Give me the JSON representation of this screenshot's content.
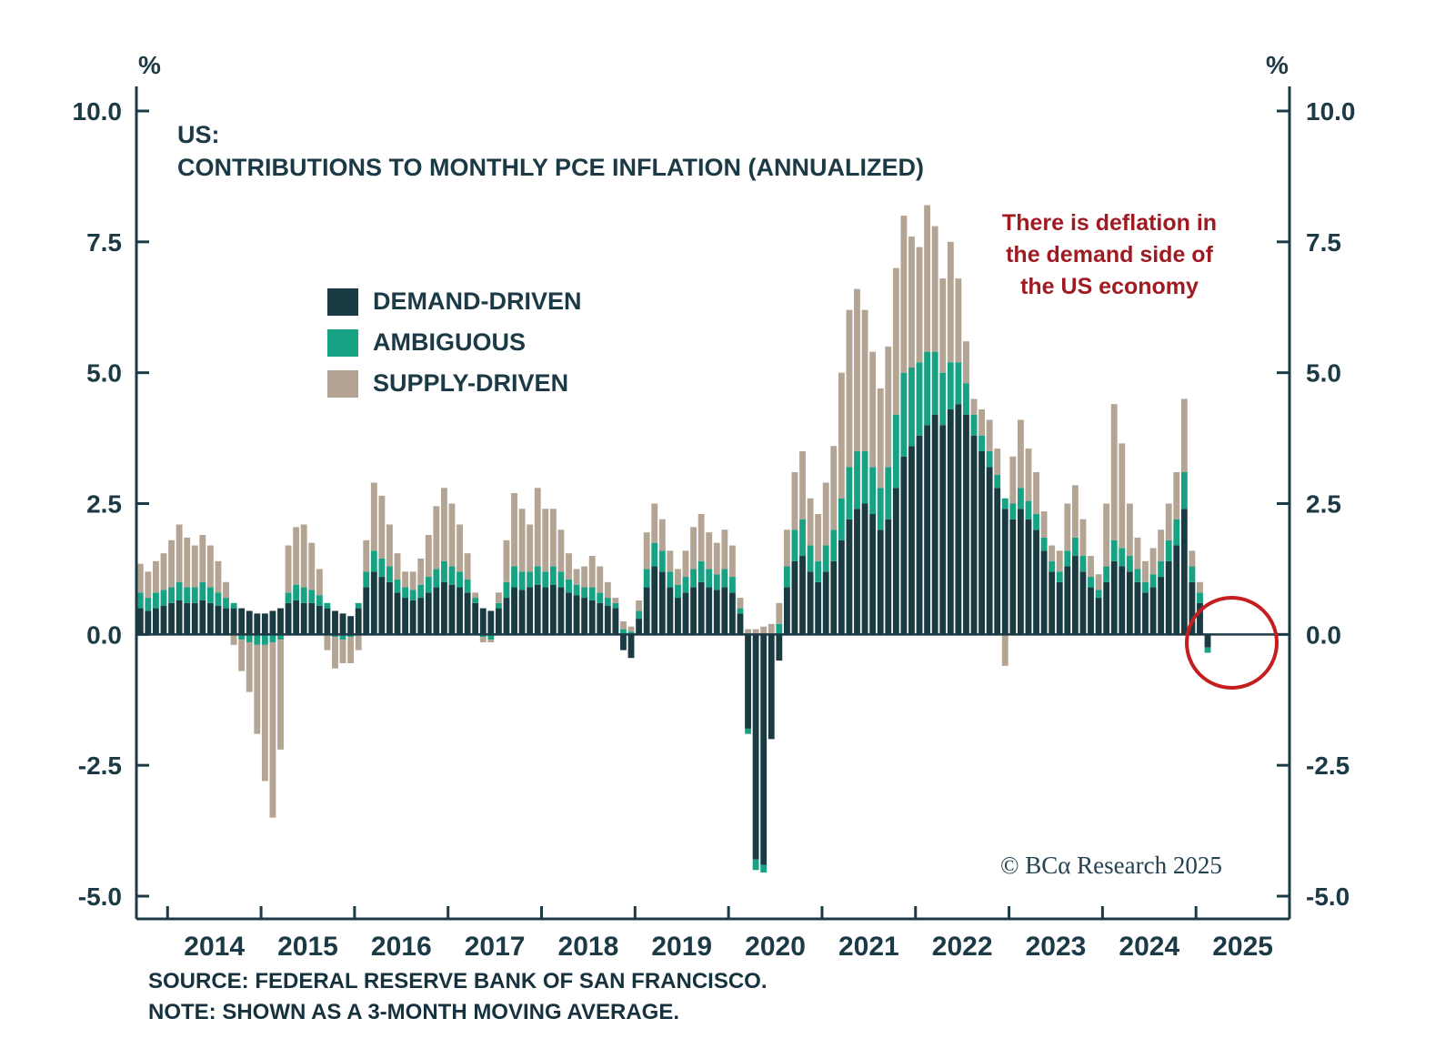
{
  "title": {
    "line1": "US:",
    "line2": "CONTRIBUTIONS TO MONTHLY PCE INFLATION (ANNUALIZED)"
  },
  "axes": {
    "unit_left": "%",
    "unit_right": "%",
    "y_ticks": [
      "10.0",
      "7.5",
      "5.0",
      "2.5",
      "0.0",
      "-2.5",
      "-5.0"
    ],
    "x_labels": [
      "2014",
      "2015",
      "2016",
      "2017",
      "2018",
      "2019",
      "2020",
      "2021",
      "2022",
      "2023",
      "2024",
      "2025"
    ]
  },
  "annotation": {
    "lines": [
      "There is deflation in",
      "the demand side of",
      "the US economy"
    ],
    "color": "#a01a22"
  },
  "copyright": "© BCα Research 2025",
  "source_note": {
    "line1": "SOURCE: FEDERAL RESERVE BANK OF SAN FRANCISCO.",
    "line2": "NOTE: SHOWN AS A 3-MONTH MOVING AVERAGE."
  },
  "chart_data": {
    "type": "bar",
    "stacked": true,
    "frequency": "monthly",
    "start": "2013-09",
    "end": "2025-02",
    "x_axis_span": [
      "2013-09",
      "2025-12"
    ],
    "ylim": [
      -5,
      10
    ],
    "grid": false,
    "legend_position": "upper-left-inside",
    "axis_color": "#1c3a46",
    "series": [
      {
        "name": "DEMAND-DRIVEN",
        "color": "#1b3b43"
      },
      {
        "name": "AMBIGUOUS",
        "color": "#17a283"
      },
      {
        "name": "SUPPLY-DRIVEN",
        "color": "#b3a493"
      }
    ],
    "values": [
      [
        0.5,
        0.3,
        0.55
      ],
      [
        0.45,
        0.25,
        0.5
      ],
      [
        0.5,
        0.3,
        0.6
      ],
      [
        0.55,
        0.3,
        0.7
      ],
      [
        0.6,
        0.3,
        0.9
      ],
      [
        0.65,
        0.35,
        1.1
      ],
      [
        0.6,
        0.3,
        0.95
      ],
      [
        0.6,
        0.3,
        0.8
      ],
      [
        0.65,
        0.35,
        0.9
      ],
      [
        0.6,
        0.3,
        0.8
      ],
      [
        0.55,
        0.25,
        0.6
      ],
      [
        0.5,
        0.2,
        0.3
      ],
      [
        0.5,
        0.1,
        -0.2
      ],
      [
        0.5,
        -0.1,
        -0.6
      ],
      [
        0.45,
        -0.15,
        -0.95
      ],
      [
        0.4,
        -0.2,
        -1.7
      ],
      [
        0.4,
        -0.2,
        -2.6
      ],
      [
        0.45,
        -0.15,
        -3.35
      ],
      [
        0.5,
        -0.1,
        -2.1
      ],
      [
        0.6,
        0.2,
        0.9
      ],
      [
        0.65,
        0.3,
        1.1
      ],
      [
        0.6,
        0.3,
        1.2
      ],
      [
        0.6,
        0.25,
        0.9
      ],
      [
        0.55,
        0.2,
        0.5
      ],
      [
        0.5,
        0.1,
        -0.3
      ],
      [
        0.45,
        -0.05,
        -0.6
      ],
      [
        0.4,
        -0.1,
        -0.45
      ],
      [
        0.35,
        -0.05,
        -0.5
      ],
      [
        0.5,
        0.1,
        -0.3
      ],
      [
        0.9,
        0.3,
        0.6
      ],
      [
        1.2,
        0.4,
        1.3
      ],
      [
        1.1,
        0.35,
        1.2
      ],
      [
        1.0,
        0.3,
        0.8
      ],
      [
        0.8,
        0.25,
        0.5
      ],
      [
        0.7,
        0.2,
        0.3
      ],
      [
        0.65,
        0.2,
        0.35
      ],
      [
        0.7,
        0.25,
        0.5
      ],
      [
        0.8,
        0.3,
        0.8
      ],
      [
        0.9,
        0.35,
        1.2
      ],
      [
        1.0,
        0.4,
        1.4
      ],
      [
        0.95,
        0.35,
        1.2
      ],
      [
        0.9,
        0.3,
        0.9
      ],
      [
        0.8,
        0.25,
        0.5
      ],
      [
        0.6,
        0.1,
        0.1
      ],
      [
        0.5,
        -0.05,
        -0.1
      ],
      [
        0.45,
        -0.1,
        -0.05
      ],
      [
        0.5,
        0.1,
        0.2
      ],
      [
        0.7,
        0.3,
        0.8
      ],
      [
        0.9,
        0.4,
        1.4
      ],
      [
        0.85,
        0.35,
        1.2
      ],
      [
        0.9,
        0.3,
        0.9
      ],
      [
        0.95,
        0.35,
        1.5
      ],
      [
        0.9,
        0.3,
        1.2
      ],
      [
        0.95,
        0.35,
        1.1
      ],
      [
        0.9,
        0.3,
        0.8
      ],
      [
        0.8,
        0.25,
        0.5
      ],
      [
        0.75,
        0.2,
        0.3
      ],
      [
        0.7,
        0.2,
        0.4
      ],
      [
        0.65,
        0.25,
        0.6
      ],
      [
        0.6,
        0.2,
        0.5
      ],
      [
        0.55,
        0.15,
        0.3
      ],
      [
        0.5,
        0.1,
        0.1
      ],
      [
        -0.3,
        0.1,
        0.15
      ],
      [
        -0.45,
        0.05,
        0.1
      ],
      [
        0.3,
        0.15,
        0.2
      ],
      [
        0.9,
        0.35,
        0.7
      ],
      [
        1.3,
        0.45,
        0.75
      ],
      [
        1.2,
        0.4,
        0.6
      ],
      [
        0.9,
        0.3,
        0.4
      ],
      [
        0.7,
        0.25,
        0.3
      ],
      [
        0.8,
        0.3,
        0.5
      ],
      [
        0.9,
        0.35,
        0.8
      ],
      [
        1.0,
        0.4,
        0.9
      ],
      [
        0.9,
        0.35,
        0.7
      ],
      [
        0.85,
        0.3,
        0.6
      ],
      [
        0.9,
        0.35,
        0.75
      ],
      [
        0.8,
        0.3,
        0.6
      ],
      [
        0.4,
        0.1,
        0.2
      ],
      [
        -1.8,
        -0.1,
        0.1
      ],
      [
        -4.3,
        -0.2,
        0.1
      ],
      [
        -4.4,
        -0.15,
        0.15
      ],
      [
        -2.0,
        0.0,
        0.2
      ],
      [
        -0.5,
        0.2,
        0.4
      ],
      [
        0.9,
        0.4,
        0.7
      ],
      [
        1.4,
        0.6,
        1.1
      ],
      [
        1.5,
        0.7,
        1.3
      ],
      [
        1.2,
        0.5,
        0.9
      ],
      [
        1.0,
        0.4,
        0.9
      ],
      [
        1.2,
        0.5,
        1.2
      ],
      [
        1.4,
        0.6,
        1.6
      ],
      [
        1.8,
        0.8,
        2.4
      ],
      [
        2.2,
        1.0,
        3.0
      ],
      [
        2.4,
        1.1,
        3.1
      ],
      [
        2.5,
        1.0,
        2.7
      ],
      [
        2.3,
        0.9,
        2.2
      ],
      [
        2.0,
        0.8,
        1.9
      ],
      [
        2.2,
        1.0,
        2.3
      ],
      [
        2.8,
        1.4,
        2.8
      ],
      [
        3.4,
        1.6,
        3.0
      ],
      [
        3.6,
        1.5,
        2.5
      ],
      [
        3.8,
        1.4,
        2.2
      ],
      [
        4.0,
        1.4,
        2.8
      ],
      [
        4.2,
        1.2,
        2.4
      ],
      [
        4.0,
        1.0,
        1.8
      ],
      [
        4.3,
        0.9,
        2.3
      ],
      [
        4.4,
        0.8,
        1.6
      ],
      [
        4.2,
        0.6,
        0.8
      ],
      [
        3.8,
        0.4,
        0.3
      ],
      [
        3.5,
        0.3,
        0.5
      ],
      [
        3.2,
        0.3,
        0.6
      ],
      [
        2.8,
        0.25,
        0.5
      ],
      [
        2.4,
        0.2,
        -0.6
      ],
      [
        2.2,
        0.3,
        0.9
      ],
      [
        2.4,
        0.4,
        1.3
      ],
      [
        2.2,
        0.35,
        1.0
      ],
      [
        2.0,
        0.3,
        0.8
      ],
      [
        1.6,
        0.25,
        0.5
      ],
      [
        1.2,
        0.2,
        0.3
      ],
      [
        1.0,
        0.2,
        0.4
      ],
      [
        1.3,
        0.3,
        0.9
      ],
      [
        1.5,
        0.35,
        1.0
      ],
      [
        1.2,
        0.3,
        0.7
      ],
      [
        0.9,
        0.2,
        0.4
      ],
      [
        0.7,
        0.15,
        0.3
      ],
      [
        1.0,
        0.3,
        1.2
      ],
      [
        1.4,
        0.4,
        2.6
      ],
      [
        1.3,
        0.35,
        2.0
      ],
      [
        1.2,
        0.3,
        1.0
      ],
      [
        1.0,
        0.25,
        0.6
      ],
      [
        0.8,
        0.2,
        0.4
      ],
      [
        0.9,
        0.25,
        0.5
      ],
      [
        1.1,
        0.3,
        0.6
      ],
      [
        1.4,
        0.4,
        0.7
      ],
      [
        1.7,
        0.5,
        0.9
      ],
      [
        2.4,
        0.7,
        1.4
      ],
      [
        1.0,
        0.3,
        0.3
      ],
      [
        0.6,
        0.2,
        0.2
      ],
      [
        -0.25,
        -0.1,
        0.0
      ]
    ]
  }
}
